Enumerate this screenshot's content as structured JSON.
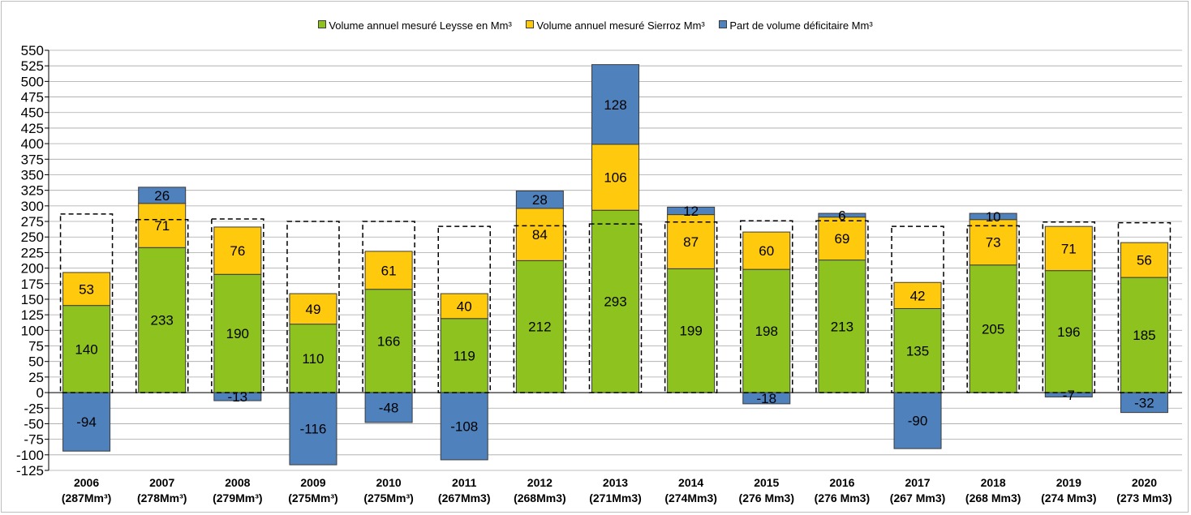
{
  "colors": {
    "leysse": "#8DC21F",
    "sierroz": "#FFC90E",
    "deficit": "#4F81BD",
    "grid": "#a6a6a6",
    "dashed": "#000000"
  },
  "legend": [
    {
      "label": "Volume annuel mesuré Leysse en Mm³",
      "color": "#8DC21F"
    },
    {
      "label": "Volume annuel mesuré Sierroz Mm³",
      "color": "#FFC90E"
    },
    {
      "label": "Part de volume déficitaire Mm³",
      "color": "#4F81BD"
    }
  ],
  "chart_data": {
    "type": "bar",
    "stacked": true,
    "title": "",
    "xlabel": "",
    "ylabel": "",
    "ylim": [
      -125,
      550
    ],
    "ytick_step": 25,
    "categories": [
      "2006",
      "2007",
      "2008",
      "2009",
      "2010",
      "2011",
      "2012",
      "2013",
      "2014",
      "2015",
      "2016",
      "2017",
      "2018",
      "2019",
      "2020"
    ],
    "category_sublabels": [
      "(287Mm³)",
      "(278Mm³)",
      "(279Mm³)",
      "(275Mm³)",
      "(275Mm³)",
      "(267Mm3)",
      "(268Mm3)",
      "(271Mm3)",
      "(274Mm3)",
      "(276 Mm3)",
      "(276 Mm3)",
      "(267 Mm3)",
      "(268 Mm3)",
      "(274 Mm3)",
      "(273 Mm3)"
    ],
    "series": [
      {
        "name": "Volume annuel mesuré Leysse en Mm³",
        "values": [
          140,
          233,
          190,
          110,
          166,
          119,
          212,
          293,
          199,
          198,
          213,
          135,
          205,
          196,
          185
        ]
      },
      {
        "name": "Volume annuel mesuré Sierroz Mm³",
        "values": [
          53,
          71,
          76,
          49,
          61,
          40,
          84,
          106,
          87,
          60,
          69,
          42,
          73,
          71,
          56
        ]
      },
      {
        "name": "Part de volume déficitaire Mm³",
        "values": [
          -94,
          26,
          -13,
          -116,
          -48,
          -108,
          28,
          128,
          12,
          -18,
          6,
          -90,
          10,
          -7,
          -32
        ]
      }
    ],
    "reference_totals": [
      287,
      278,
      279,
      275,
      275,
      267,
      268,
      271,
      274,
      276,
      276,
      267,
      268,
      274,
      273
    ],
    "legend_position": "top"
  }
}
